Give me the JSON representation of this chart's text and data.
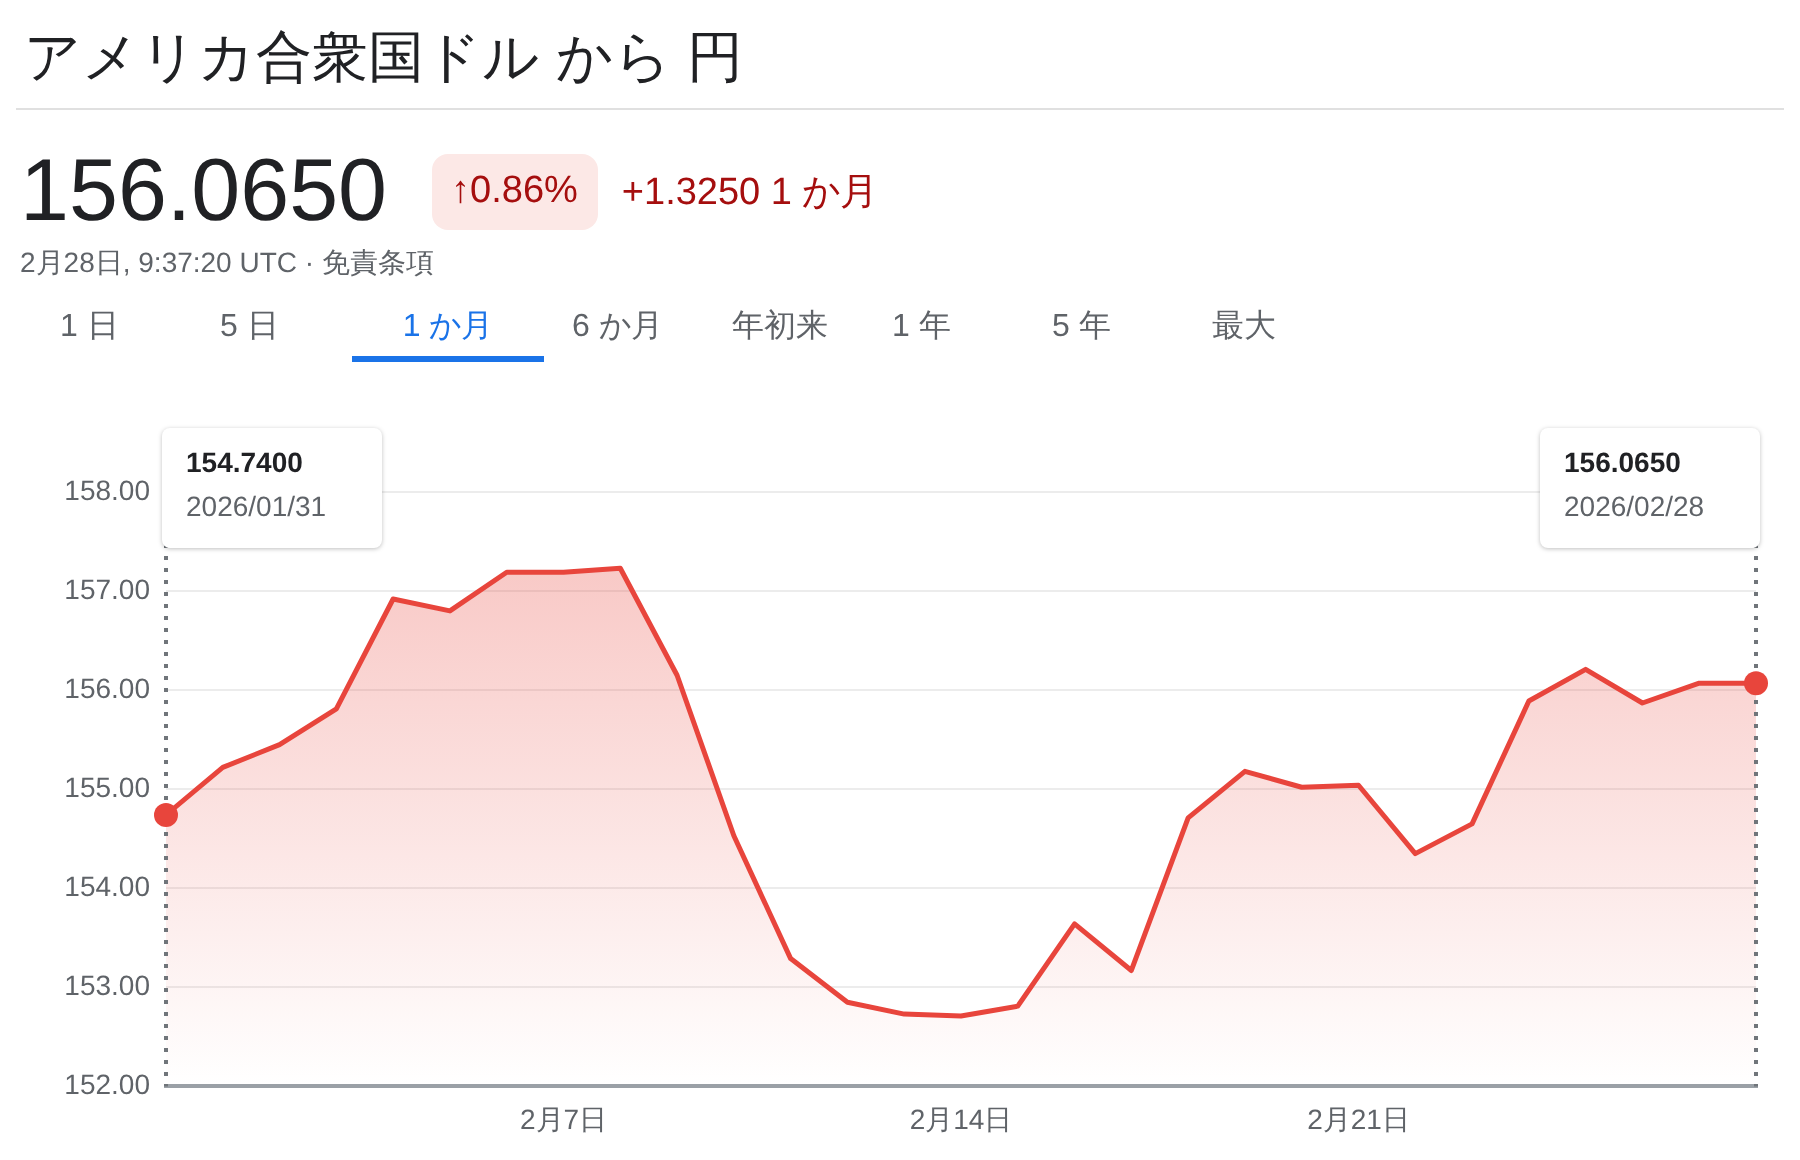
{
  "chart_data": {
    "type": "area",
    "title": "アメリカ合衆国ドル から 円",
    "annotations": [
      "156.0650",
      "↑0.86%",
      "+1.3250 1 か月",
      "2月28日, 9:37:20 UTC · 免責条項",
      "1 日",
      "5 日",
      "1 か月",
      "6 か月",
      "年初来",
      "1 年",
      "5 年",
      "最大",
      "154.7400",
      "2026/01/31",
      "156.0650",
      "2026/02/28"
    ],
    "x": [
      "2026-01-31",
      "2026-02-01",
      "2026-02-02",
      "2026-02-03",
      "2026-02-04",
      "2026-02-05",
      "2026-02-06",
      "2026-02-07",
      "2026-02-08",
      "2026-02-09",
      "2026-02-10",
      "2026-02-11",
      "2026-02-12",
      "2026-02-13",
      "2026-02-14",
      "2026-02-15",
      "2026-02-16",
      "2026-02-17",
      "2026-02-18",
      "2026-02-19",
      "2026-02-20",
      "2026-02-21",
      "2026-02-22",
      "2026-02-23",
      "2026-02-24",
      "2026-02-25",
      "2026-02-26",
      "2026-02-27",
      "2026-02-28"
    ],
    "series": [
      {
        "color": "#e8453c",
        "values": [
          154.74,
          155.22,
          155.45,
          155.81,
          156.92,
          156.8,
          157.19,
          157.19,
          157.23,
          156.15,
          154.53,
          153.29,
          152.85,
          152.73,
          152.71,
          152.81,
          153.64,
          153.17,
          154.71,
          155.18,
          155.02,
          155.04,
          154.35,
          154.65,
          155.89,
          156.21,
          155.87,
          156.07,
          156.07
        ]
      }
    ],
    "xlim": [
      "2026-01-31",
      "2026-02-28"
    ],
    "xticks": [
      {
        "value": "2026-02-07",
        "label": "2月7日"
      },
      {
        "value": "2026-02-14",
        "label": "2月14日"
      },
      {
        "value": "2026-02-21",
        "label": "2月21日"
      }
    ],
    "ylim": [
      152,
      158
    ],
    "yticks": [
      {
        "value": 152,
        "label": "152.00"
      },
      {
        "value": 153,
        "label": "153.00"
      },
      {
        "value": 154,
        "label": "154.00"
      },
      {
        "value": 155,
        "label": "155.00"
      },
      {
        "value": 156,
        "label": "156.00"
      },
      {
        "value": 157,
        "label": "157.00"
      },
      {
        "value": 158,
        "label": "158.00"
      }
    ],
    "grid": "y",
    "legend": false
  }
}
